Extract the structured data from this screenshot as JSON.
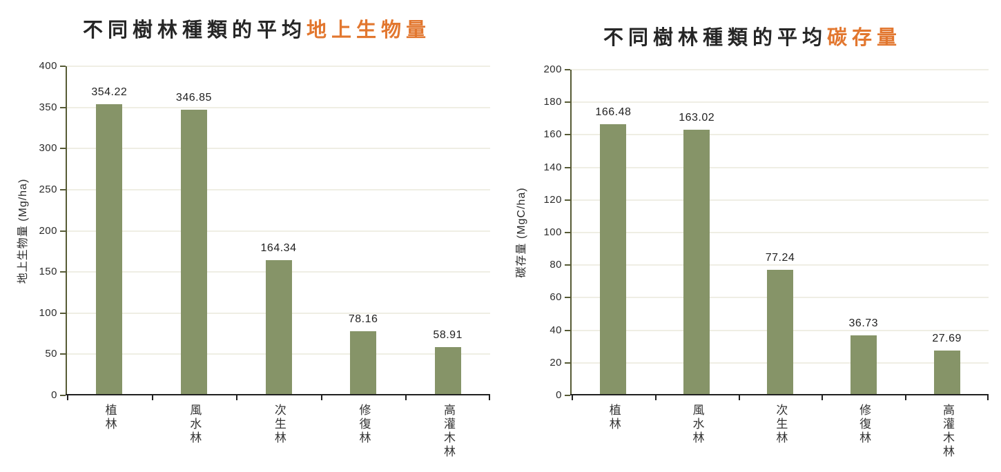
{
  "colors": {
    "bar": "#869468",
    "title_text": "#262626",
    "title_accent": "#E2772F",
    "gridline": "#EFEEE4",
    "y_axis": "#565A35",
    "x_axis": "#1F1F1F",
    "tick_label": "#2B2B2B",
    "data_label": "#1F1F1F",
    "category_label": "#333333",
    "background": "#FFFFFF"
  },
  "chart_data": [
    {
      "type": "bar",
      "title": "不同樹林種類的平均地上生物量",
      "title_prefix": "不同樹林種類的平均",
      "title_highlight": "地上生物量",
      "xlabel": "",
      "ylabel": "地上生物量 (Mg/ha)",
      "categories": [
        "植林",
        "風水林",
        "次生林",
        "修復林",
        "高灌木林"
      ],
      "values": [
        354.22,
        346.85,
        164.34,
        78.16,
        58.91
      ],
      "data_labels": [
        "354.22",
        "346.85",
        "164.34",
        "78.16",
        "58.91"
      ],
      "ylim": [
        0,
        400
      ],
      "ytick_step": 50,
      "grid": true,
      "legend": false
    },
    {
      "type": "bar",
      "title": "不同樹林種類的平均碳存量",
      "title_prefix": "不同樹林種類的平均",
      "title_highlight": "碳存量",
      "xlabel": "",
      "ylabel": "碳存量 (MgC/ha)",
      "categories": [
        "植林",
        "風水林",
        "次生林",
        "修復林",
        "高灌木林"
      ],
      "values": [
        166.48,
        163.02,
        77.24,
        36.73,
        27.69
      ],
      "data_labels": [
        "166.48",
        "163.02",
        "77.24",
        "36.73",
        "27.69"
      ],
      "ylim": [
        0,
        200
      ],
      "ytick_step": 20,
      "grid": true,
      "legend": false
    }
  ]
}
